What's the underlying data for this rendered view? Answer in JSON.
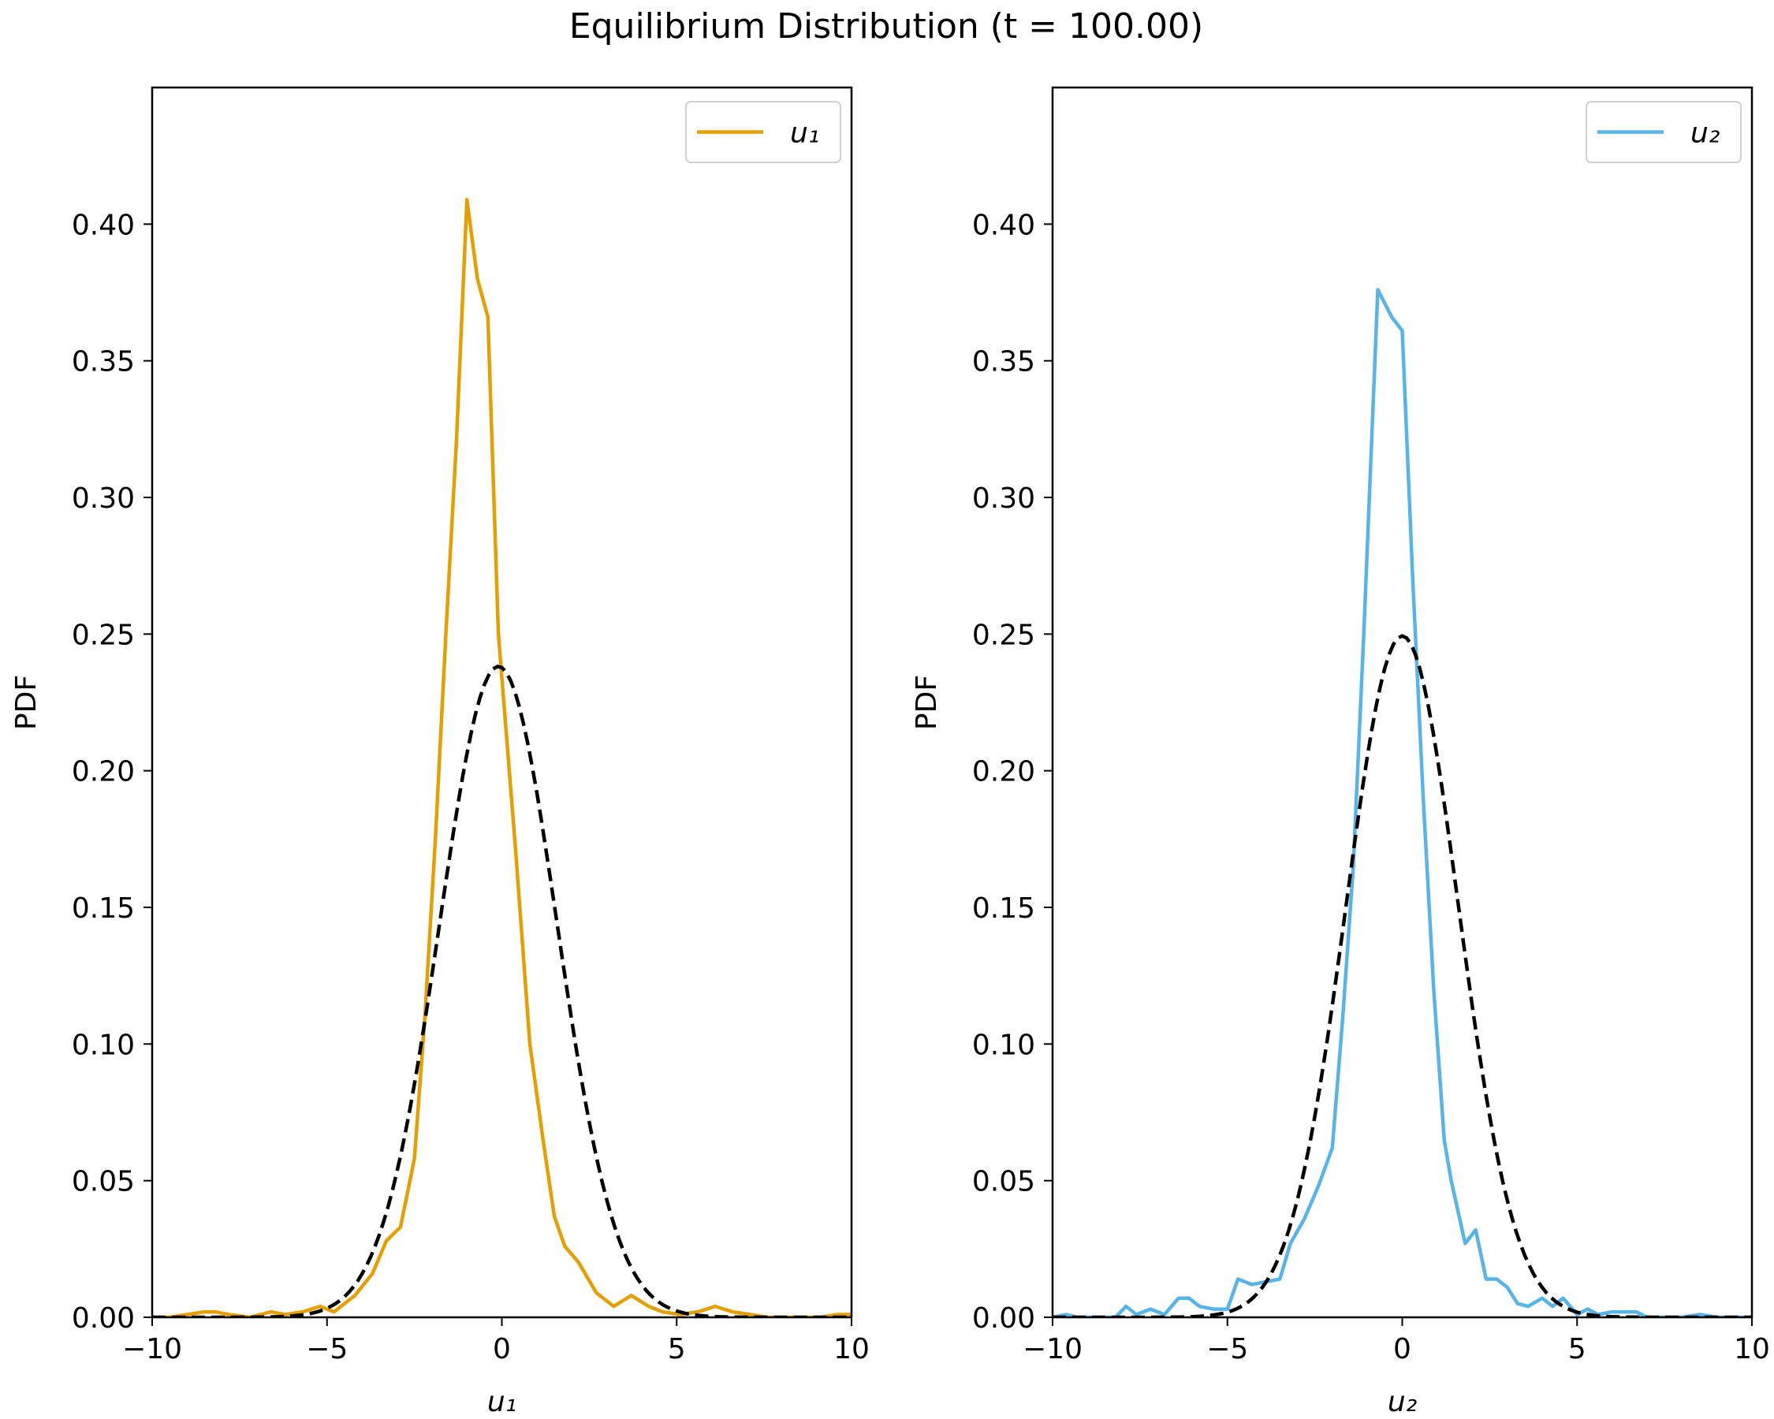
{
  "figure": {
    "title": "Equilibrium Distribution (t = 100.00)"
  },
  "chart_data": [
    {
      "type": "line",
      "xlabel": "u₁",
      "ylabel": "PDF",
      "xlim": [
        -10,
        10
      ],
      "ylim": [
        0,
        0.45
      ],
      "xticks": [
        "−10",
        "−5",
        "0",
        "5",
        "10"
      ],
      "xtick_values": [
        -10,
        -5,
        0,
        5,
        10
      ],
      "yticks": [
        "0.00",
        "0.05",
        "0.10",
        "0.15",
        "0.20",
        "0.25",
        "0.30",
        "0.35",
        "0.40"
      ],
      "ytick_values": [
        0,
        0.05,
        0.1,
        0.15,
        0.2,
        0.25,
        0.3,
        0.35,
        0.4
      ],
      "legend": {
        "position": "top-right",
        "entries": [
          "u₁"
        ]
      },
      "series": [
        {
          "name": "u₁",
          "color": "#E69F00",
          "style": "solid",
          "x": [
            -10,
            -9.5,
            -9,
            -8.5,
            -8.2,
            -7.8,
            -7.2,
            -6.6,
            -6.2,
            -5.7,
            -5.2,
            -4.8,
            -4.5,
            -4.2,
            -3.7,
            -3.3,
            -2.9,
            -2.5,
            -2.2,
            -1.9,
            -1.6,
            -1.3,
            -1.0,
            -0.7,
            -0.4,
            -0.1,
            0.4,
            0.8,
            1.2,
            1.5,
            1.8,
            2.2,
            2.7,
            3.2,
            3.7,
            4.2,
            4.6,
            5.1,
            5.6,
            6.1,
            6.6,
            7.1,
            7.6,
            8.1,
            8.6,
            9.1,
            9.6,
            10
          ],
          "y": [
            0,
            0,
            0.001,
            0.002,
            0.002,
            0.001,
            0,
            0.002,
            0.001,
            0.002,
            0.004,
            0.002,
            0.005,
            0.008,
            0.016,
            0.028,
            0.033,
            0.058,
            0.11,
            0.175,
            0.25,
            0.32,
            0.409,
            0.38,
            0.366,
            0.25,
            0.17,
            0.1,
            0.063,
            0.037,
            0.026,
            0.02,
            0.009,
            0.004,
            0.008,
            0.004,
            0.002,
            0.001,
            0.002,
            0.004,
            0.002,
            0.001,
            0,
            0,
            0,
            0,
            0.001,
            0.001
          ]
        },
        {
          "color": "#000000",
          "style": "dashed",
          "fit": {
            "mean": -0.1,
            "sd": 1.675,
            "xmin": -10,
            "xmax": 10,
            "n": 161
          }
        }
      ]
    },
    {
      "type": "line",
      "xlabel": "u₂",
      "ylabel": "PDF",
      "xlim": [
        -10,
        10
      ],
      "ylim": [
        0,
        0.45
      ],
      "xticks": [
        "−10",
        "−5",
        "0",
        "5",
        "10"
      ],
      "xtick_values": [
        -10,
        -5,
        0,
        5,
        10
      ],
      "yticks": [
        "0.00",
        "0.05",
        "0.10",
        "0.15",
        "0.20",
        "0.25",
        "0.30",
        "0.35",
        "0.40"
      ],
      "ytick_values": [
        0,
        0.05,
        0.1,
        0.15,
        0.2,
        0.25,
        0.3,
        0.35,
        0.4
      ],
      "legend": {
        "position": "top-right",
        "entries": [
          "u₂"
        ]
      },
      "series": [
        {
          "name": "u₂",
          "color": "#56B4E9",
          "style": "solid",
          "x": [
            -10,
            -9.6,
            -9.3,
            -8.5,
            -8.2,
            -7.9,
            -7.6,
            -7.2,
            -6.8,
            -6.4,
            -6.1,
            -5.8,
            -5.4,
            -5.0,
            -4.7,
            -4.3,
            -3.9,
            -3.5,
            -3.2,
            -2.8,
            -2.4,
            -2.0,
            -1.7,
            -1.4,
            -1.1,
            -0.7,
            -0.3,
            0.0,
            0.3,
            0.6,
            0.9,
            1.2,
            1.4,
            1.8,
            2.1,
            2.4,
            2.7,
            3.0,
            3.3,
            3.6,
            4.0,
            4.3,
            4.6,
            5.0,
            5.3,
            5.6,
            6.0,
            6.3,
            6.7,
            7.0,
            7.5,
            8.0,
            8.5,
            9.0,
            9.5,
            10
          ],
          "y": [
            0,
            0.001,
            0,
            0,
            0,
            0.004,
            0.001,
            0.003,
            0.001,
            0.007,
            0.007,
            0.004,
            0.003,
            0.003,
            0.014,
            0.012,
            0.013,
            0.014,
            0.027,
            0.036,
            0.048,
            0.062,
            0.11,
            0.165,
            0.25,
            0.376,
            0.366,
            0.361,
            0.27,
            0.19,
            0.12,
            0.065,
            0.05,
            0.027,
            0.032,
            0.014,
            0.014,
            0.011,
            0.005,
            0.004,
            0.007,
            0.004,
            0.007,
            0.001,
            0.003,
            0.001,
            0.002,
            0.002,
            0.002,
            0,
            0,
            0,
            0.001,
            0,
            0,
            0
          ]
        },
        {
          "color": "#000000",
          "style": "dashed",
          "fit": {
            "mean": 0.0,
            "sd": 1.6,
            "xmin": -10,
            "xmax": 10,
            "n": 161
          }
        }
      ]
    }
  ]
}
